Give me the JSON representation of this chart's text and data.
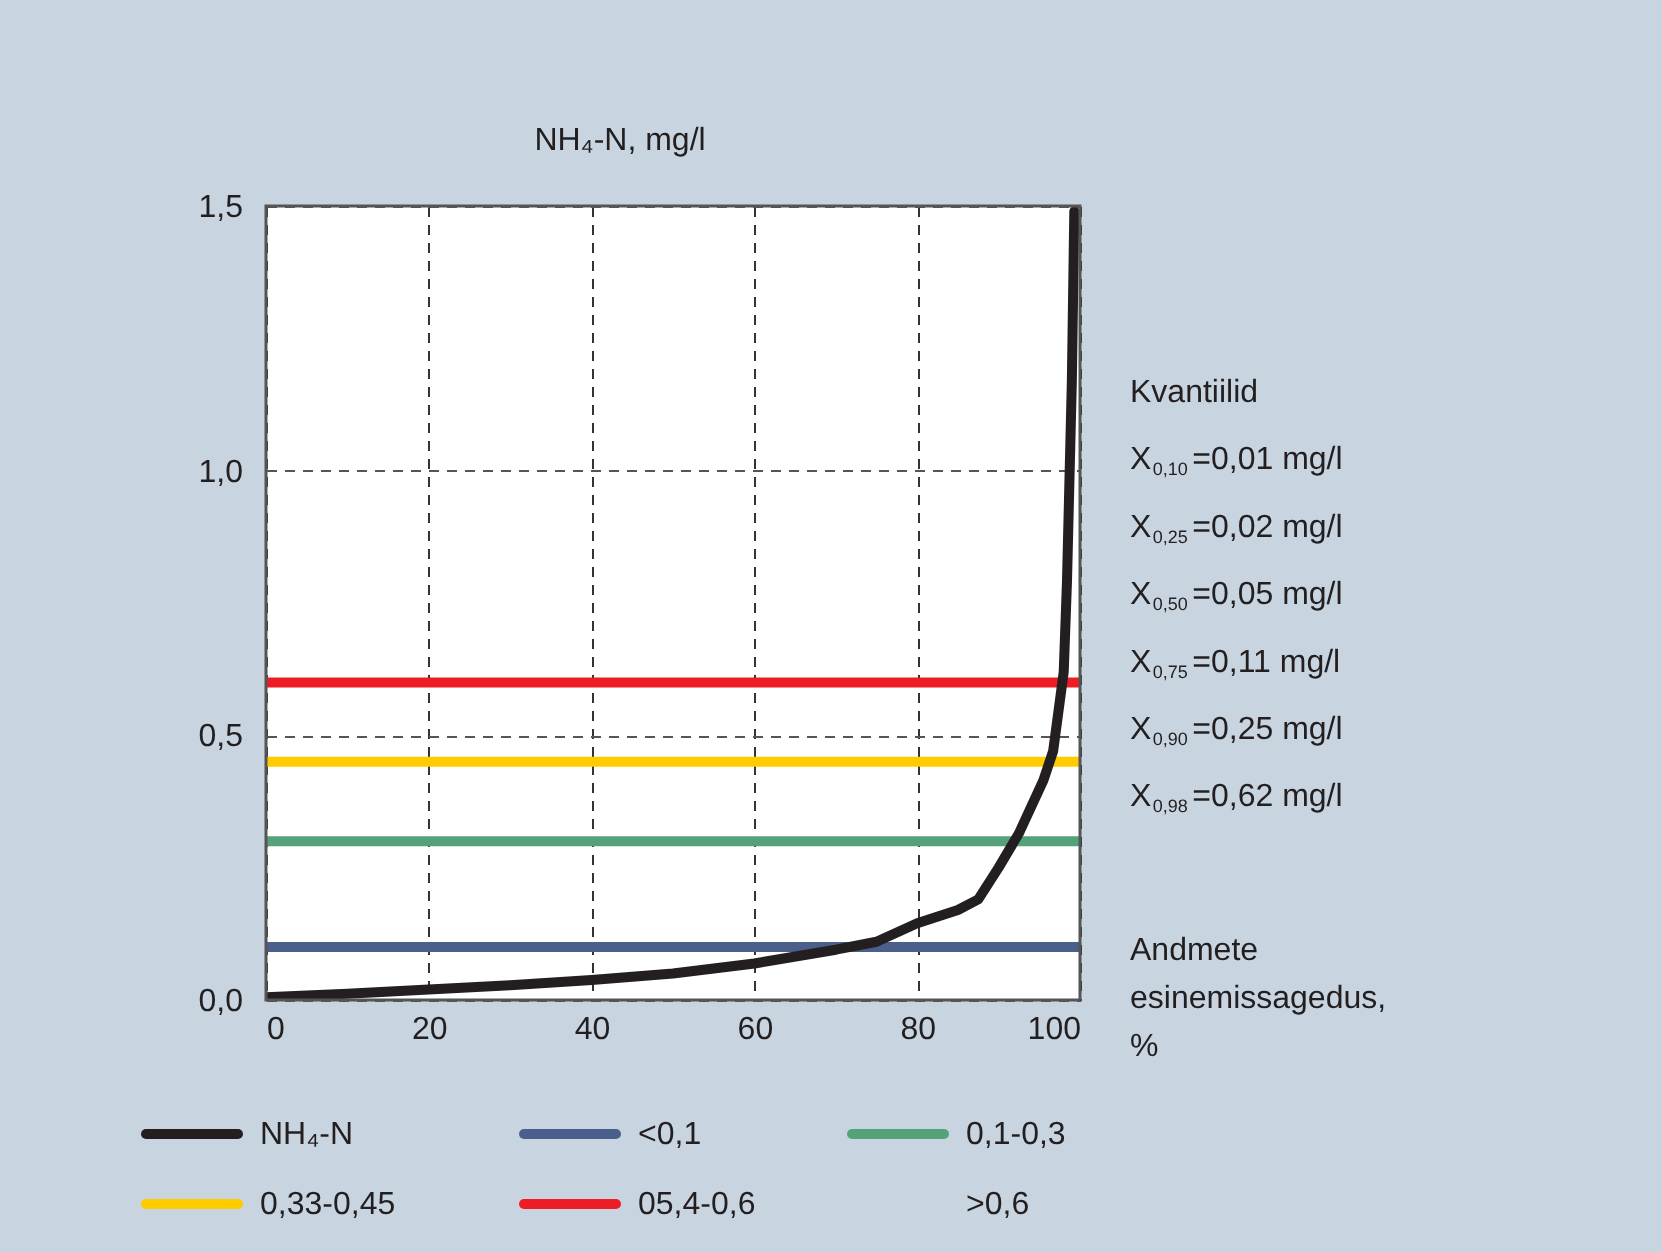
{
  "chart_data": {
    "type": "line",
    "title": "NH₄-N, mg/l",
    "xlabel": "Andmete esinemissagedus, %",
    "annotations": [
      "Kvantiilid",
      "X$_{0,10}$=0,01 mg/l",
      "X$_{0,25}$=0,02 mg/l",
      "X$_{0,50}$=0,05 mg/l",
      "X$_{0,75}$=0,11 mg/l",
      "X$_{0,90}$=0,25 mg/l",
      "X$_{0,98}$=0,62 mg/l",
      ">0,6"
    ],
    "series": [
      {
        "name": "NH₄-N",
        "color": "#231f20",
        "x": [
          0,
          10,
          20,
          30,
          40,
          50,
          60,
          70,
          75,
          80,
          85,
          87.5,
          90,
          92.5,
          95.5,
          96.7,
          98,
          98.4,
          99,
          99.3
        ],
        "values": [
          0.005,
          0.012,
          0.02,
          0.028,
          0.038,
          0.05,
          0.069,
          0.095,
          0.11,
          0.145,
          0.17,
          0.19,
          0.25,
          0.315,
          0.415,
          0.47,
          0.62,
          0.79,
          1.17,
          1.49
        ]
      },
      {
        "name": "<0,1",
        "color": "#4a5f8c",
        "x": [
          0,
          100
        ],
        "values": [
          0.1,
          0.1
        ]
      },
      {
        "name": "0,1-0,3",
        "color": "#55a27a",
        "x": [
          0,
          100
        ],
        "values": [
          0.3,
          0.3
        ]
      },
      {
        "name": "0,33-0,45",
        "color": "#ffcc00",
        "x": [
          0,
          100
        ],
        "values": [
          0.45,
          0.45
        ]
      },
      {
        "name": "05,4-0,6",
        "color": "#ee1c25",
        "x": [
          0,
          100
        ],
        "values": [
          0.6,
          0.6
        ]
      }
    ],
    "xlim": [
      0,
      100
    ],
    "ylim": [
      0,
      1.5
    ],
    "xticks": [
      0,
      20,
      40,
      60,
      80,
      100
    ],
    "yticks": [
      {
        "value": 0,
        "label": "0,0"
      },
      {
        "value": 0.5,
        "label": "0,5"
      },
      {
        "value": 1.0,
        "label": "1,0"
      },
      {
        "value": 1.5,
        "label": "1,5"
      }
    ],
    "grid": true,
    "legend": "bottom",
    "marker": "none",
    "line_style": "solid"
  }
}
